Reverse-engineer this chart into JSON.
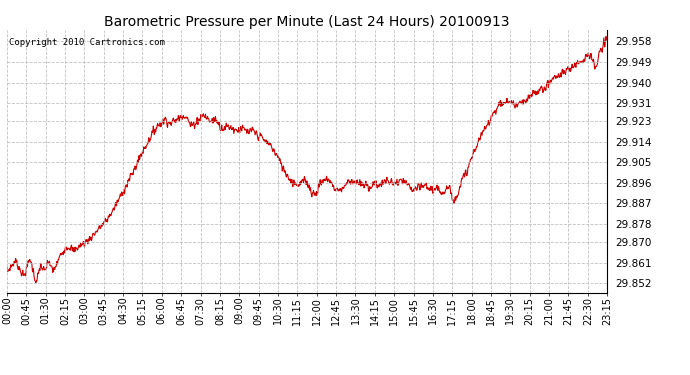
{
  "title": "Barometric Pressure per Minute (Last 24 Hours) 20100913",
  "copyright": "Copyright 2010 Cartronics.com",
  "line_color": "#cc0000",
  "background_color": "#ffffff",
  "plot_bg_color": "#ffffff",
  "grid_color": "#bbbbbb",
  "ylabel_color": "#000000",
  "yticks": [
    29.852,
    29.861,
    29.87,
    29.878,
    29.887,
    29.896,
    29.905,
    29.914,
    29.923,
    29.931,
    29.94,
    29.949,
    29.958
  ],
  "ylim": [
    29.848,
    29.963
  ],
  "xtick_labels": [
    "00:00",
    "00:45",
    "01:30",
    "02:15",
    "03:00",
    "03:45",
    "04:30",
    "05:15",
    "06:00",
    "06:45",
    "07:30",
    "08:15",
    "09:00",
    "09:45",
    "10:30",
    "11:15",
    "12:00",
    "12:45",
    "13:30",
    "14:15",
    "15:00",
    "15:45",
    "16:30",
    "17:15",
    "18:00",
    "18:45",
    "19:30",
    "20:15",
    "21:00",
    "21:45",
    "22:30",
    "23:15"
  ],
  "num_points": 1440,
  "key_points": {
    "0": 29.857,
    "20": 29.862,
    "40": 29.855,
    "55": 29.863,
    "70": 29.852,
    "80": 29.86,
    "90": 29.857,
    "100": 29.862,
    "110": 29.857,
    "120": 29.861,
    "130": 29.865,
    "140": 29.868,
    "150": 29.868,
    "160": 29.866,
    "170": 29.868,
    "180": 29.869,
    "200": 29.872,
    "220": 29.876,
    "240": 29.88,
    "260": 29.886,
    "280": 29.893,
    "300": 29.9,
    "320": 29.908,
    "340": 29.915,
    "360": 29.921,
    "380": 29.924,
    "390": 29.922,
    "400": 29.923,
    "410": 29.924,
    "420": 29.926,
    "430": 29.925,
    "440": 29.921,
    "450": 29.922,
    "460": 29.924,
    "470": 29.926,
    "480": 29.924,
    "490": 29.923,
    "500": 29.924,
    "510": 29.921,
    "520": 29.92,
    "530": 29.921,
    "540": 29.92,
    "550": 29.919,
    "560": 29.92,
    "570": 29.919,
    "580": 29.918,
    "590": 29.919,
    "600": 29.917,
    "610": 29.916,
    "620": 29.914,
    "630": 29.913,
    "640": 29.91,
    "650": 29.907,
    "660": 29.903,
    "670": 29.9,
    "680": 29.897,
    "690": 29.896,
    "700": 29.895,
    "710": 29.897,
    "720": 29.896,
    "730": 29.892,
    "740": 29.891,
    "750": 29.896,
    "760": 29.897,
    "770": 29.898,
    "780": 29.895,
    "790": 29.893,
    "800": 29.893,
    "810": 29.895,
    "820": 29.897,
    "830": 29.897,
    "840": 29.896,
    "850": 29.895,
    "860": 29.895,
    "870": 29.894,
    "880": 29.896,
    "890": 29.895,
    "900": 29.896,
    "910": 29.897,
    "920": 29.896,
    "930": 29.896,
    "940": 29.896,
    "950": 29.897,
    "960": 29.895,
    "970": 29.893,
    "980": 29.893,
    "990": 29.894,
    "1000": 29.895,
    "1010": 29.894,
    "1020": 29.893,
    "1030": 29.893,
    "1040": 29.892,
    "1050": 29.893,
    "1060": 29.895,
    "1070": 29.887,
    "1080": 29.892,
    "1090": 29.897,
    "1100": 29.9,
    "1110": 29.905,
    "1120": 29.91,
    "1130": 29.914,
    "1140": 29.918,
    "1150": 29.921,
    "1160": 29.925,
    "1170": 29.928,
    "1180": 29.93,
    "1190": 29.931,
    "1200": 29.932,
    "1210": 29.931,
    "1220": 29.93,
    "1230": 29.931,
    "1240": 29.931,
    "1250": 29.933,
    "1260": 29.935,
    "1270": 29.936,
    "1280": 29.937,
    "1290": 29.938,
    "1300": 29.94,
    "1310": 29.942,
    "1320": 29.943,
    "1330": 29.944,
    "1340": 29.945,
    "1350": 29.946,
    "1360": 29.948,
    "1370": 29.949,
    "1380": 29.95,
    "1390": 29.952,
    "1400": 29.952,
    "1410": 29.945,
    "1420": 29.953,
    "1430": 29.956,
    "1439": 29.96
  }
}
